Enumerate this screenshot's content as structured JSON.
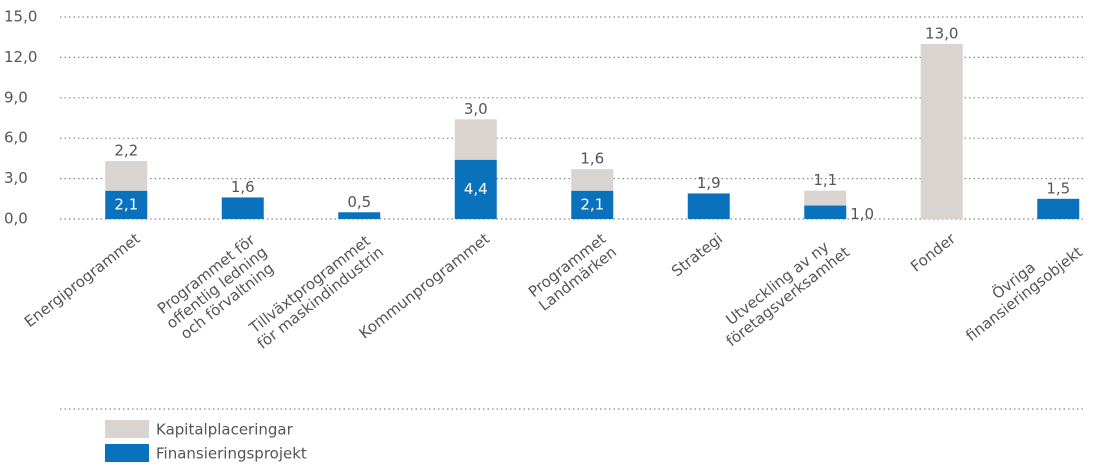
{
  "chart_data": {
    "type": "stacked_bar",
    "categories": [
      [
        "Energiprogrammet"
      ],
      [
        "Programmet för",
        "offentlig ledning",
        "och förvaltning"
      ],
      [
        "Tillväxtprogrammet",
        "för maskindindustrin"
      ],
      [
        "Kommunprogrammet"
      ],
      [
        "Programmet",
        "Landmärken"
      ],
      [
        "Strategi"
      ],
      [
        "Utveckling av ny",
        "företagsverksamhet"
      ],
      [
        "Fonder"
      ],
      [
        "Övriga",
        "finansieringsobjekt"
      ]
    ],
    "series": [
      {
        "name": "Finansieringsprojekt",
        "color": "#0a72bd",
        "values": [
          2.1,
          1.6,
          0.5,
          4.4,
          2.1,
          1.9,
          1.0,
          null,
          1.5
        ],
        "value_labels": [
          "2,1",
          "1,6",
          "0,5",
          "4,4",
          "2,1",
          "1,9",
          "1,0",
          null,
          "1,5"
        ]
      },
      {
        "name": "Kapitalplaceringar",
        "color": "#d9d4cf",
        "values": [
          2.2,
          null,
          null,
          3.0,
          1.6,
          null,
          1.1,
          13.0,
          null
        ],
        "value_labels": [
          "2,2",
          null,
          null,
          "3,0",
          "1,6",
          null,
          "1,1",
          "13,0",
          null
        ]
      }
    ],
    "ylim": [
      0,
      15
    ],
    "yticks": [
      {
        "value": 0,
        "label": "0,0"
      },
      {
        "value": 3,
        "label": "3,0"
      },
      {
        "value": 6,
        "label": "6,0"
      },
      {
        "value": 9,
        "label": "9,0"
      },
      {
        "value": 12,
        "label": "12,0"
      },
      {
        "value": 15,
        "label": "15,0"
      }
    ],
    "grid": true
  }
}
